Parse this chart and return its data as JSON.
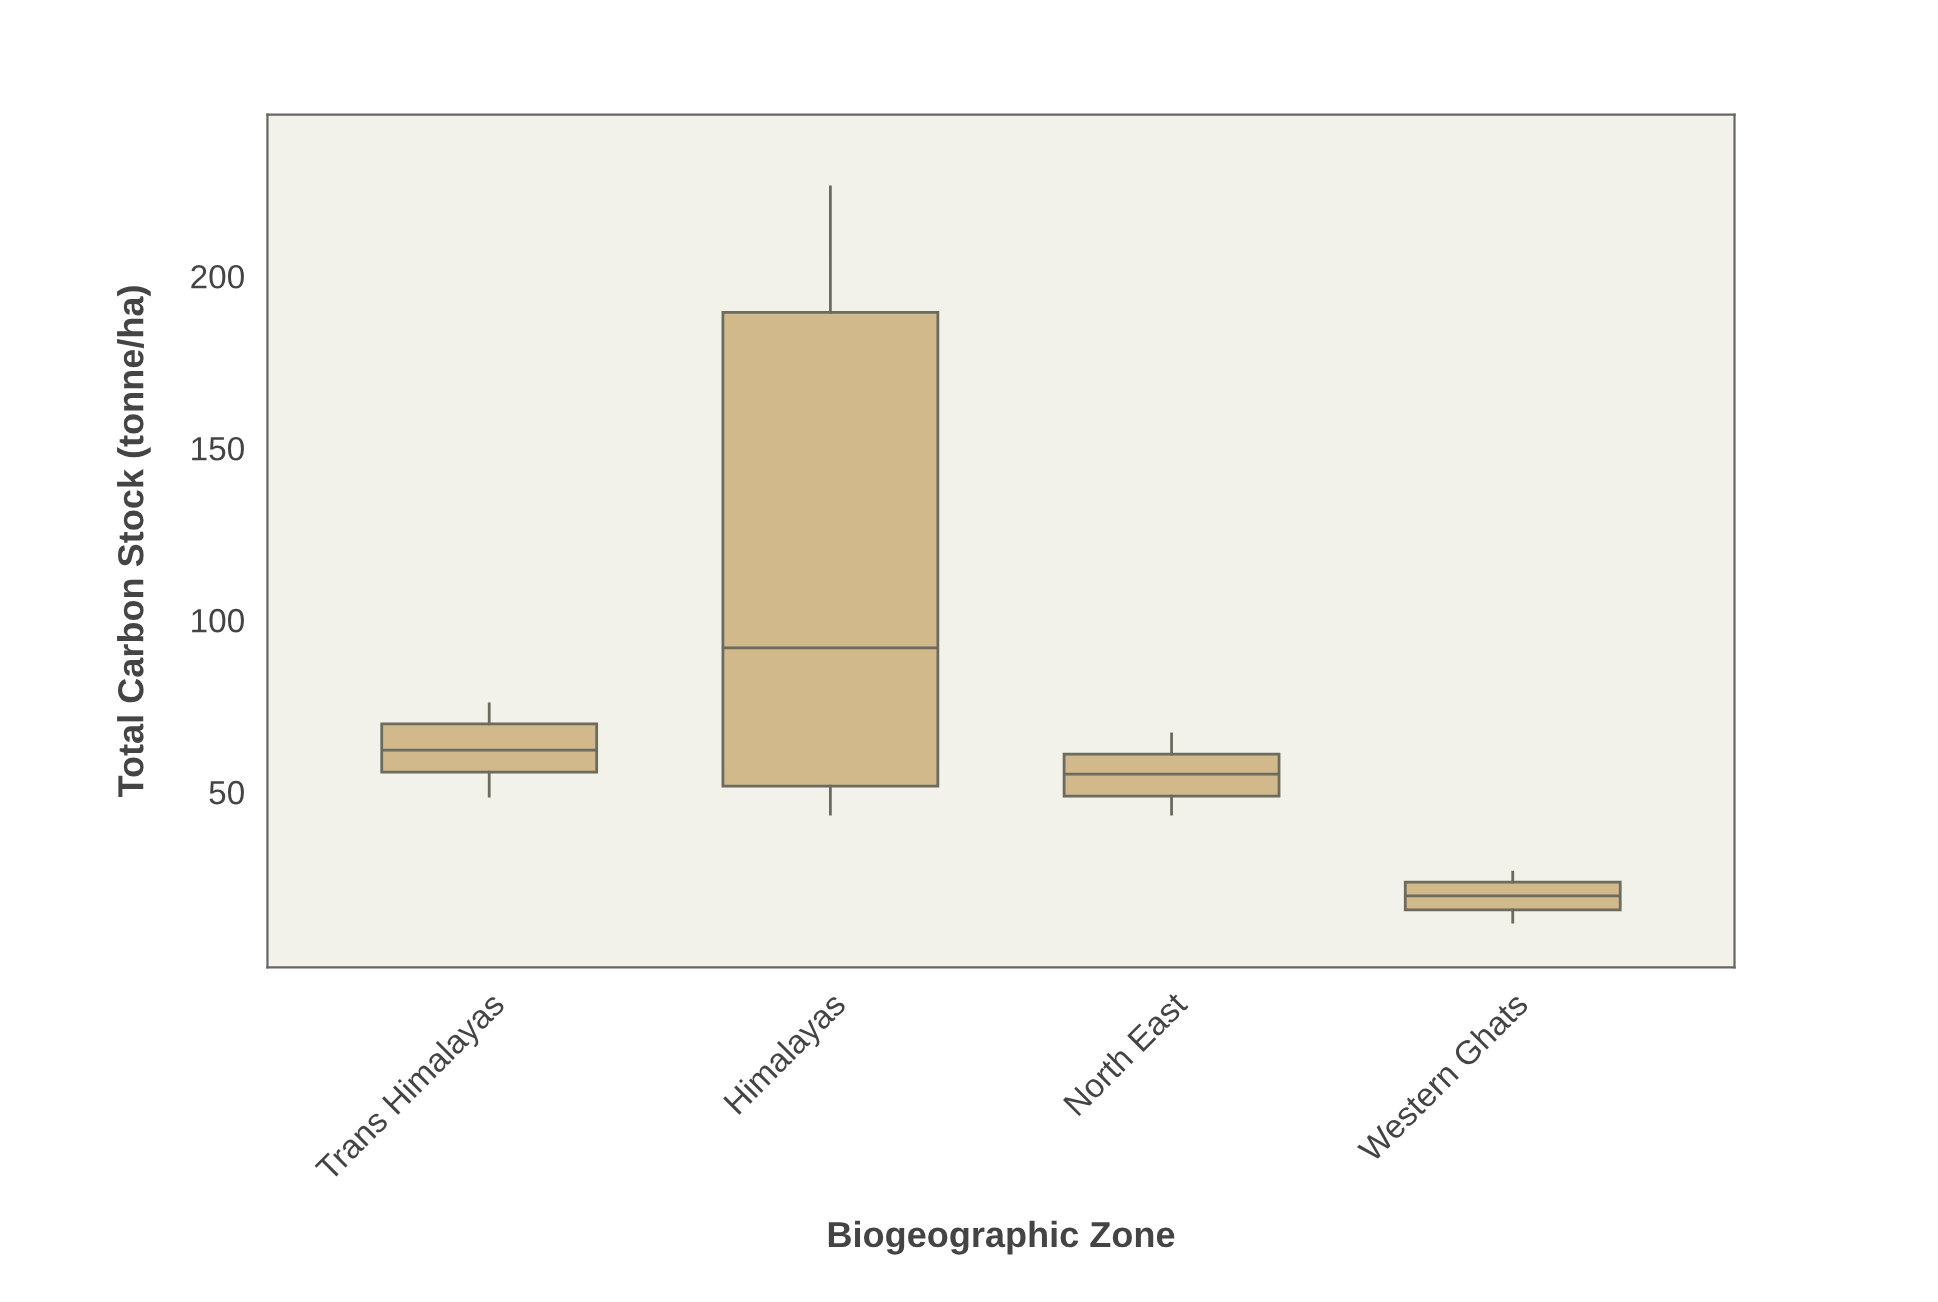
{
  "chart_data": {
    "type": "box",
    "xlabel": "Biogeographic Zone",
    "ylabel": "Total Carbon Stock (tonne/ha)",
    "categories": [
      "Trans Himalayas",
      "Himalayas",
      "North East",
      "Western Ghats"
    ],
    "color": "#d1b98c",
    "boxes": [
      {
        "low": 48.8,
        "q1": 55.8,
        "median": 62.2,
        "q3": 69.8,
        "high": 75.6
      },
      {
        "low": 43.6,
        "q1": 51.7,
        "median": 91.9,
        "q3": 189.5,
        "high": 226
      },
      {
        "low": 43.6,
        "q1": 48.8,
        "median": 55.2,
        "q3": 61,
        "high": 66.9
      },
      {
        "low": 12.2,
        "q1": 15.7,
        "median": 19.8,
        "q3": 23.8,
        "high": 26.7
      }
    ],
    "ylim": [
      -1,
      247
    ],
    "yticks": [
      50,
      100,
      150,
      200
    ],
    "grid": false,
    "legend": false
  }
}
